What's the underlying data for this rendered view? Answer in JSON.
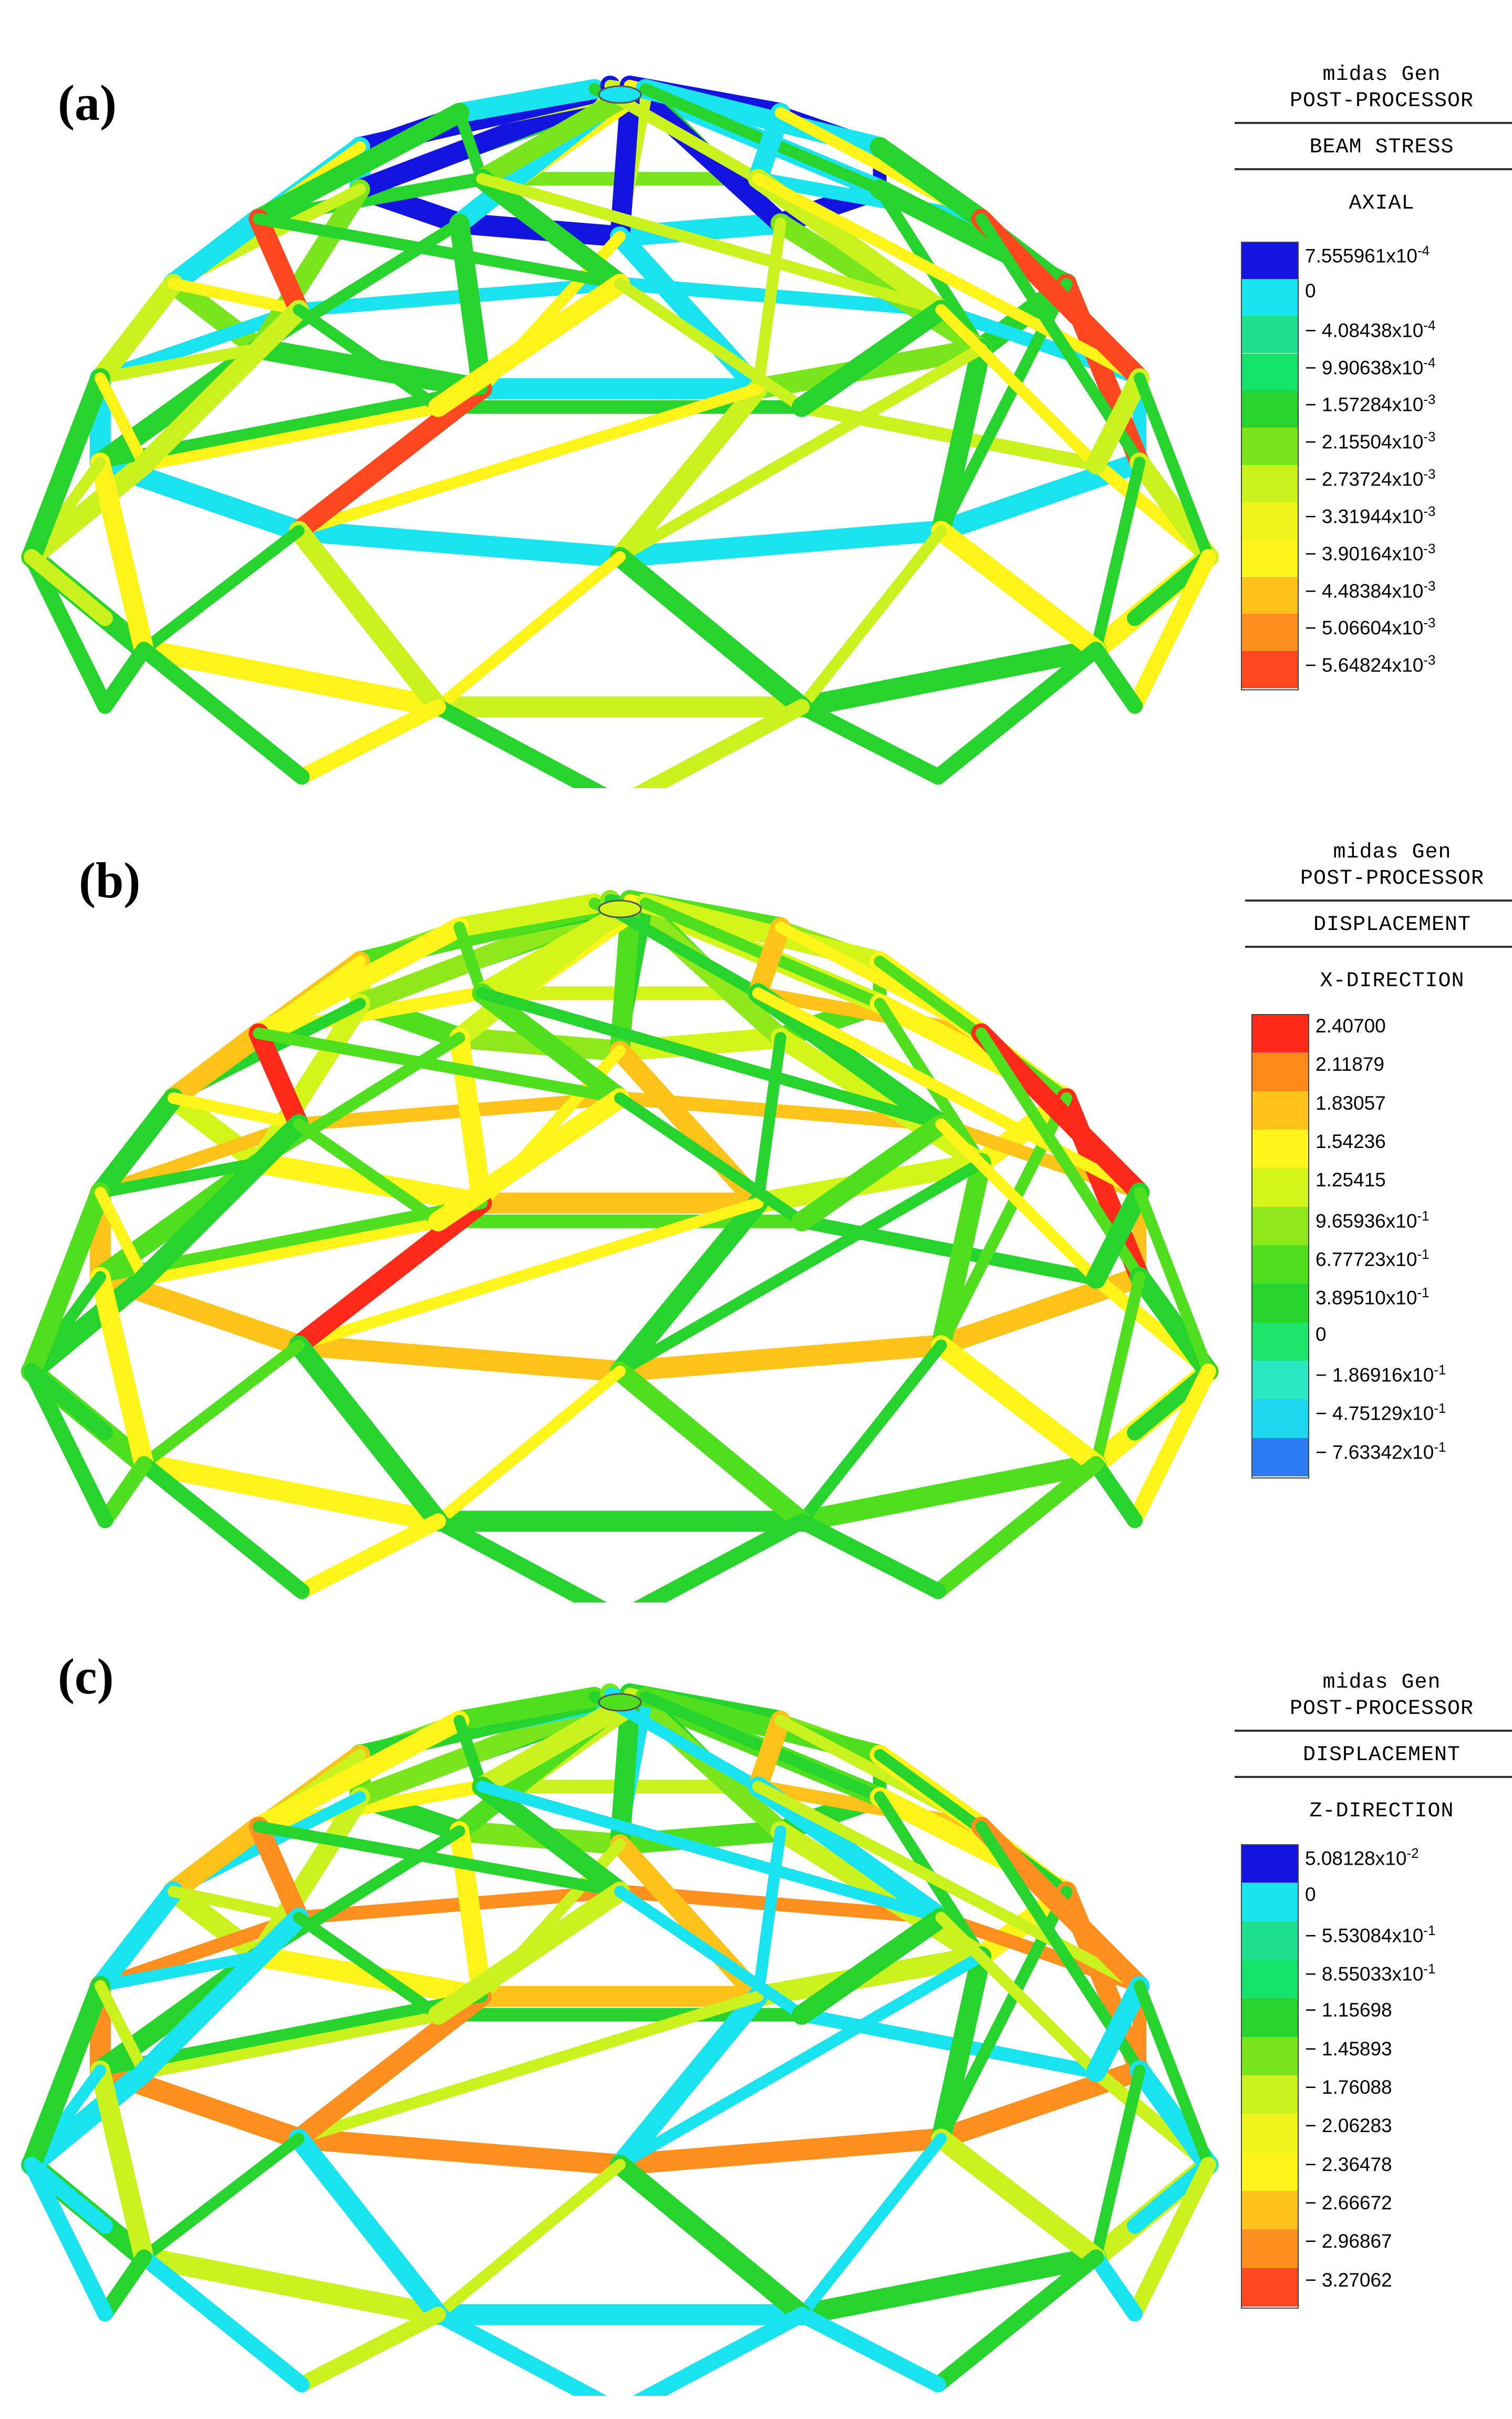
{
  "panels": [
    {
      "label": "(a)",
      "software": "midas Gen",
      "module": "POST-PROCESSOR",
      "result_type": "BEAM STRESS",
      "component": "AXIAL",
      "scale": [
        {
          "value": "7.555961x10",
          "exp": "-4",
          "sign": "",
          "color": "#1414e0"
        },
        {
          "value": "0",
          "exp": "",
          "sign": "",
          "color": "#19e3ef"
        },
        {
          "value": "4.08438x10",
          "exp": "-4",
          "sign": "−",
          "color": "#1ddf8c"
        },
        {
          "value": "9.90638x10",
          "exp": "-4",
          "sign": "−",
          "color": "#14e46a"
        },
        {
          "value": "1.57284x10",
          "exp": "-3",
          "sign": "−",
          "color": "#27d42e"
        },
        {
          "value": "2.15504x10",
          "exp": "-3",
          "sign": "−",
          "color": "#79e51c"
        },
        {
          "value": "2.73724x10",
          "exp": "-3",
          "sign": "−",
          "color": "#c9f21e"
        },
        {
          "value": "3.31944x10",
          "exp": "-3",
          "sign": "−",
          "color": "#eff51a"
        },
        {
          "value": "3.90164x10",
          "exp": "-3",
          "sign": "−",
          "color": "#fff41a"
        },
        {
          "value": "4.48384x10",
          "exp": "-3",
          "sign": "−",
          "color": "#ffc21a"
        },
        {
          "value": "5.06604x10",
          "exp": "-3",
          "sign": "−",
          "color": "#ff9020"
        },
        {
          "value": "5.64824x10",
          "exp": "-3",
          "sign": "−",
          "color": "#ff4820"
        }
      ]
    },
    {
      "label": "(b)",
      "software": "midas Gen",
      "module": "POST-PROCESSOR",
      "result_type": "DISPLACEMENT",
      "component": "X-DIRECTION",
      "scale": [
        {
          "value": "2.40700",
          "exp": "",
          "sign": "",
          "color": "#ff2a1a"
        },
        {
          "value": "2.11879",
          "exp": "",
          "sign": "",
          "color": "#ff8a1a"
        },
        {
          "value": "1.83057",
          "exp": "",
          "sign": "",
          "color": "#ffc31a"
        },
        {
          "value": "1.54236",
          "exp": "",
          "sign": "",
          "color": "#fff51a"
        },
        {
          "value": "1.25415",
          "exp": "",
          "sign": "",
          "color": "#d4f51a"
        },
        {
          "value": "9.65936x10",
          "exp": "-1",
          "sign": "",
          "color": "#8fe81a"
        },
        {
          "value": "6.77723x10",
          "exp": "-1",
          "sign": "",
          "color": "#4fdf1e"
        },
        {
          "value": "3.89510x10",
          "exp": "-1",
          "sign": "",
          "color": "#27d42e"
        },
        {
          "value": "0",
          "exp": "",
          "sign": "",
          "color": "#1ee46a"
        },
        {
          "value": "1.86916x10",
          "exp": "-1",
          "sign": "−",
          "color": "#2ae8c2"
        },
        {
          "value": "4.75129x10",
          "exp": "-1",
          "sign": "−",
          "color": "#1fd8f0"
        },
        {
          "value": "7.63342x10",
          "exp": "-1",
          "sign": "−",
          "color": "#2a7cf0"
        }
      ]
    },
    {
      "label": "(c)",
      "software": "midas Gen",
      "module": "POST-PROCESSOR",
      "result_type": "DISPLACEMENT",
      "component": "Z-DIRECTION",
      "scale": [
        {
          "value": "5.08128x10",
          "exp": "-2",
          "sign": "",
          "color": "#1414e0"
        },
        {
          "value": "0",
          "exp": "",
          "sign": "",
          "color": "#19e3ef"
        },
        {
          "value": "5.53084x10",
          "exp": "-1",
          "sign": "−",
          "color": "#1ddf8c"
        },
        {
          "value": "8.55033x10",
          "exp": "-1",
          "sign": "−",
          "color": "#14e46a"
        },
        {
          "value": "1.15698",
          "exp": "",
          "sign": "−",
          "color": "#27d42e"
        },
        {
          "value": "1.45893",
          "exp": "",
          "sign": "−",
          "color": "#79e51c"
        },
        {
          "value": "1.76088",
          "exp": "",
          "sign": "−",
          "color": "#c9f21e"
        },
        {
          "value": "2.06283",
          "exp": "",
          "sign": "−",
          "color": "#eff51a"
        },
        {
          "value": "2.36478",
          "exp": "",
          "sign": "−",
          "color": "#fff41a"
        },
        {
          "value": "2.66672",
          "exp": "",
          "sign": "−",
          "color": "#ffc21a"
        },
        {
          "value": "2.96867",
          "exp": "",
          "sign": "−",
          "color": "#ff9020"
        },
        {
          "value": "3.27062",
          "exp": "",
          "sign": "−",
          "color": "#ff4820"
        }
      ]
    }
  ]
}
